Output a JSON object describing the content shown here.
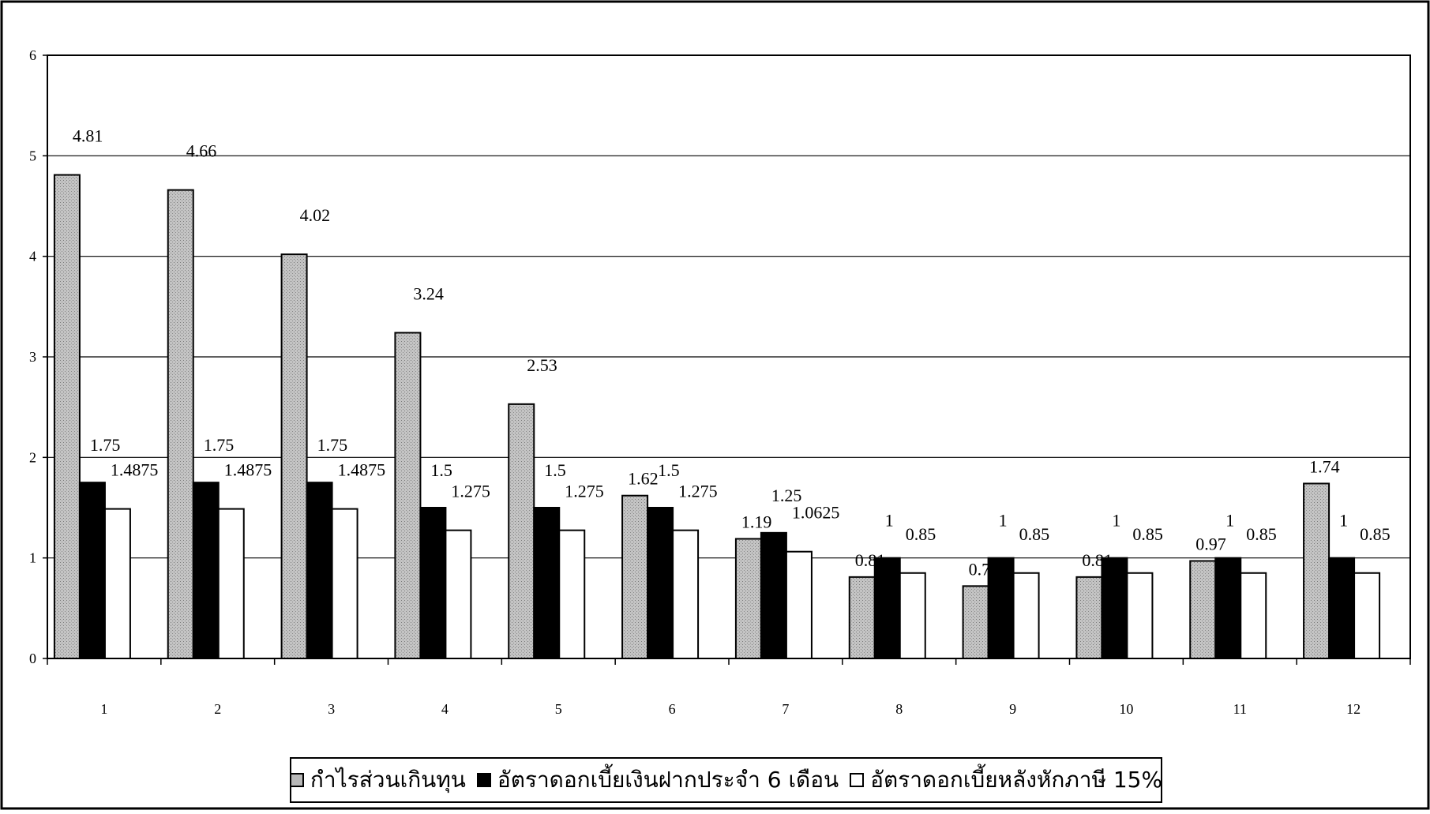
{
  "chart_data": {
    "type": "bar",
    "title": "",
    "xlabel": "",
    "ylabel": "",
    "ylim": [
      0,
      6
    ],
    "yticks": [
      "0",
      "1",
      "2",
      "3",
      "4",
      "5",
      "6"
    ],
    "grid": true,
    "legend_position": "bottom",
    "categories": [
      "1",
      "2",
      "3",
      "4",
      "5",
      "6",
      "7",
      "8",
      "9",
      "10",
      "11",
      "12"
    ],
    "series": [
      {
        "name": "กำไรส่วนเกินทุน",
        "color": "#b8b8b8",
        "values": [
          4.81,
          4.66,
          4.02,
          3.24,
          2.53,
          1.62,
          1.19,
          0.81,
          0.72,
          0.81,
          0.97,
          1.74
        ],
        "labels": [
          "4.81",
          "4.66",
          "4.02",
          "3.24",
          "2.53",
          "1.62",
          "1.19",
          "0.81",
          "0.72",
          "0.81",
          "0.97",
          "1.74"
        ]
      },
      {
        "name": "อัตราดอกเบี้ยเงินฝากประจำ 6 เดือน",
        "color": "#000000",
        "values": [
          1.75,
          1.75,
          1.75,
          1.5,
          1.5,
          1.5,
          1.25,
          1,
          1,
          1,
          1,
          1
        ],
        "labels": [
          "1.75",
          "1.75",
          "1.75",
          "1.5",
          "1.5",
          "1.5",
          "1.25",
          "1",
          "1",
          "1",
          "1",
          "1"
        ]
      },
      {
        "name": "อัตราดอกเบี้ยหลังหักภาษี 15%",
        "color": "#ffffff",
        "values": [
          1.4875,
          1.4875,
          1.4875,
          1.275,
          1.275,
          1.275,
          1.0625,
          0.85,
          0.85,
          0.85,
          0.85,
          0.85
        ],
        "labels": [
          "1.4875",
          "1.4875",
          "1.4875",
          "1.275",
          "1.275",
          "1.275",
          "1.0625",
          "0.85",
          "0.85",
          "0.85",
          "0.85",
          "0.85"
        ]
      }
    ]
  }
}
